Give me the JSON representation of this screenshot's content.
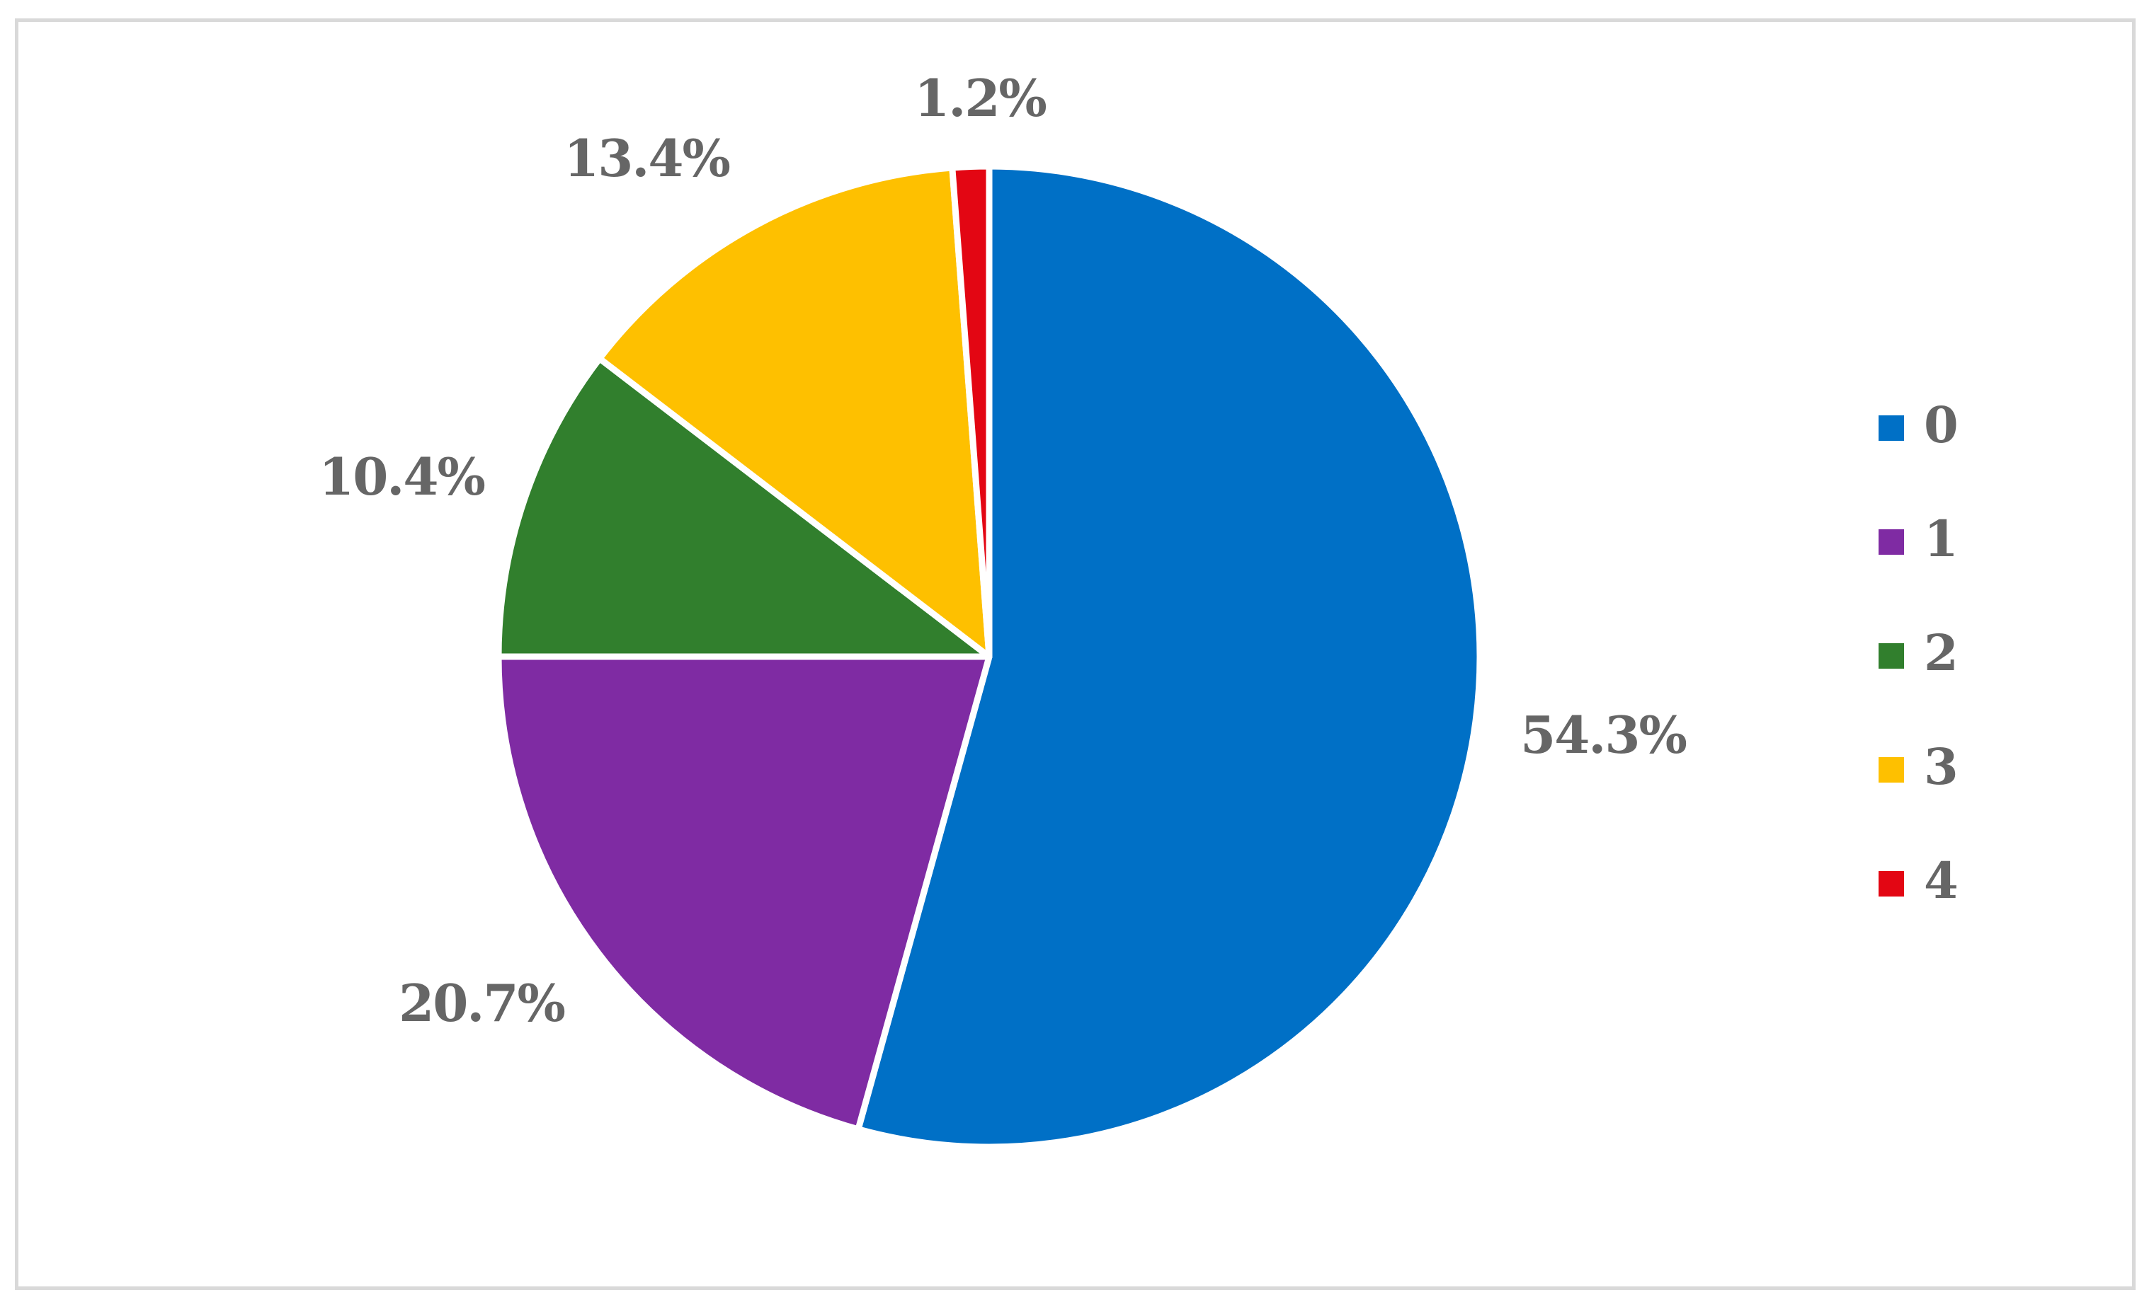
{
  "chart_data": {
    "type": "pie",
    "categories": [
      "0",
      "1",
      "2",
      "3",
      "4"
    ],
    "values": [
      54.3,
      20.7,
      10.4,
      13.4,
      1.2
    ],
    "data_labels": [
      "54.3%",
      "20.7%",
      "10.4%",
      "13.4%",
      "1.2%"
    ],
    "colors": [
      "#0070c6",
      "#7f2ba3",
      "#317f2d",
      "#fec000",
      "#e30613"
    ],
    "title": "",
    "legend_position": "right",
    "start_angle_deg": 0,
    "direction": "clockwise"
  }
}
